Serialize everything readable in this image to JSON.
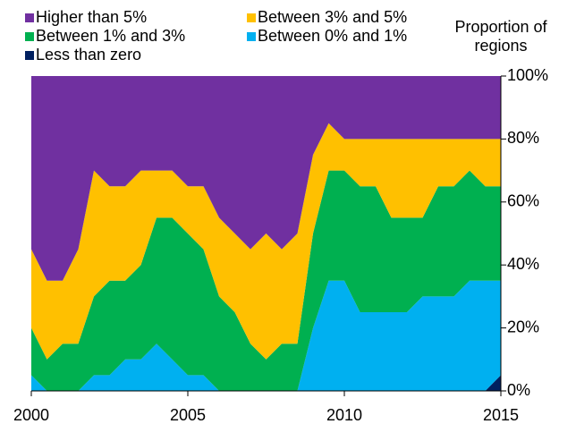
{
  "chart_data": {
    "type": "stacked_area",
    "y_label": "Proportion of regions",
    "x": [
      2000,
      2000.5,
      2001,
      2001.5,
      2002,
      2002.5,
      2003,
      2003.5,
      2004,
      2004.5,
      2005,
      2005.5,
      2006,
      2006.5,
      2007,
      2007.5,
      2008,
      2008.5,
      2009,
      2009.5,
      2010,
      2010.5,
      2011,
      2011.5,
      2012,
      2012.5,
      2013,
      2013.5,
      2014,
      2014.5,
      2015
    ],
    "series": [
      {
        "name": "Higher than 5%",
        "color": "#7030a0",
        "values": [
          55,
          65,
          65,
          55,
          30,
          35,
          35,
          30,
          30,
          30,
          35,
          35,
          45,
          50,
          55,
          50,
          55,
          50,
          25,
          15,
          20,
          20,
          20,
          20,
          20,
          20,
          20,
          20,
          20,
          20,
          20
        ]
      },
      {
        "name": "Between 3% and 5%",
        "color": "#ffc000",
        "values": [
          25,
          25,
          20,
          30,
          40,
          30,
          30,
          30,
          15,
          15,
          15,
          20,
          25,
          25,
          30,
          40,
          30,
          35,
          25,
          15,
          10,
          15,
          15,
          25,
          25,
          25,
          15,
          15,
          10,
          15,
          15
        ]
      },
      {
        "name": "Between 1% and 3%",
        "color": "#00b050",
        "values": [
          15,
          10,
          15,
          15,
          25,
          30,
          25,
          30,
          40,
          45,
          45,
          40,
          30,
          25,
          15,
          10,
          15,
          15,
          30,
          35,
          35,
          40,
          40,
          30,
          30,
          25,
          35,
          35,
          35,
          30,
          30
        ]
      },
      {
        "name": "Between 0% and 1%",
        "color": "#00b0f0",
        "values": [
          5,
          0,
          0,
          0,
          5,
          5,
          10,
          10,
          15,
          10,
          5,
          5,
          0,
          0,
          0,
          0,
          0,
          0,
          20,
          35,
          35,
          25,
          25,
          25,
          25,
          30,
          30,
          30,
          35,
          35,
          30
        ]
      },
      {
        "name": "Less than zero",
        "color": "#002060",
        "values": [
          0,
          0,
          0,
          0,
          0,
          0,
          0,
          0,
          0,
          0,
          0,
          0,
          0,
          0,
          0,
          0,
          0,
          0,
          0,
          0,
          0,
          0,
          0,
          0,
          0,
          0,
          0,
          0,
          0,
          0,
          5
        ]
      }
    ],
    "xlim": [
      2000,
      2015
    ],
    "xticks": [
      2000,
      2005,
      2010,
      2015
    ],
    "ylim": [
      0,
      100
    ],
    "yticks": [
      {
        "value": 0,
        "label": "0%"
      },
      {
        "value": 20,
        "label": "20%"
      },
      {
        "value": 40,
        "label": "40%"
      },
      {
        "value": 60,
        "label": "60%"
      },
      {
        "value": 80,
        "label": "80%"
      },
      {
        "value": 100,
        "label": "100%"
      }
    ],
    "legend": "top"
  }
}
